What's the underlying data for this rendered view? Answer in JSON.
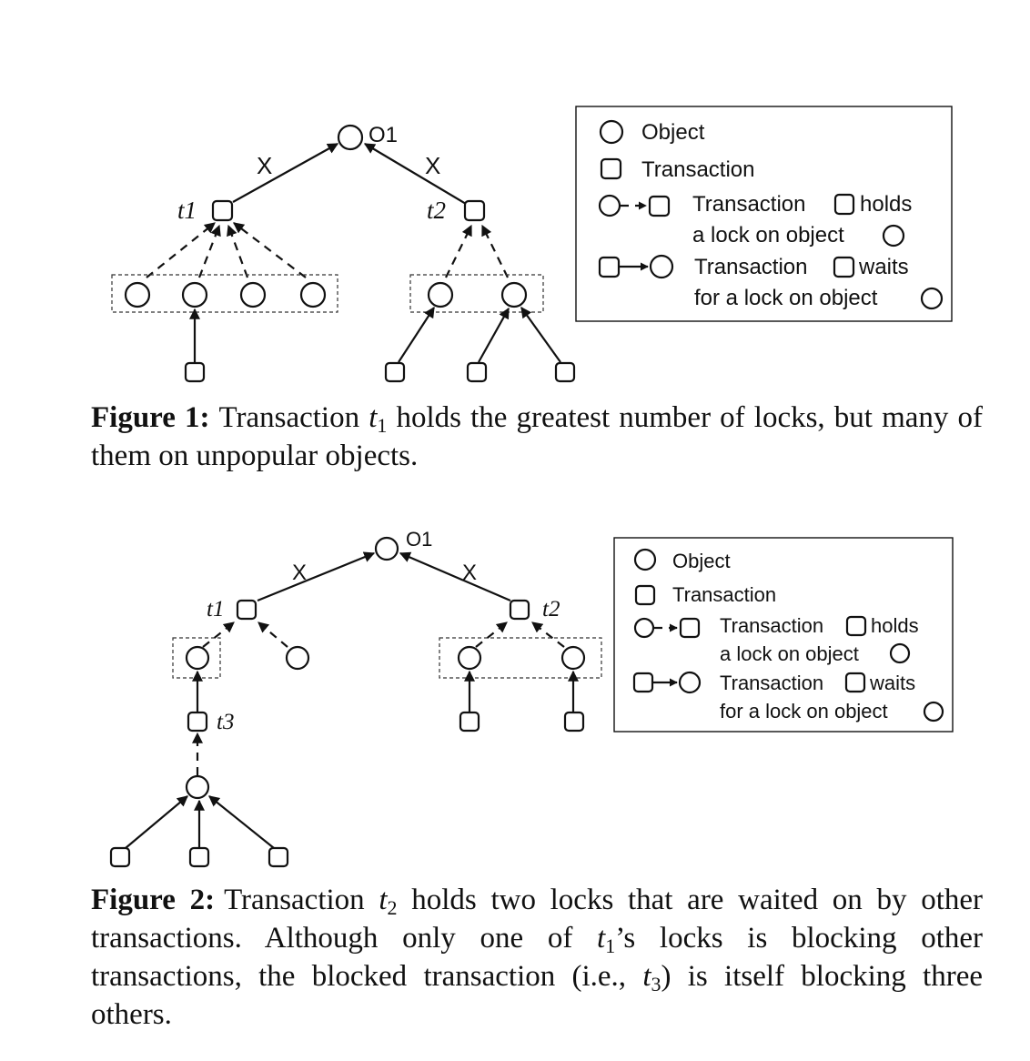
{
  "figure1": {
    "diagram": {
      "root_label": "O1",
      "edge_label_left": "X",
      "edge_label_right": "X",
      "t1_label": "t1",
      "t2_label": "t2"
    },
    "legend": {
      "object": "Object",
      "transaction": "Transaction",
      "holds_line1_a": "Transaction",
      "holds_line1_b": "holds",
      "holds_line2": "a lock on object",
      "waits_line1_a": "Transaction",
      "waits_line1_b": "waits",
      "waits_line2": "for a lock on object"
    },
    "caption": {
      "label": "Figure 1:",
      "text_before": "Transaction ",
      "var": "t",
      "sub": "1",
      "text_after": " holds the greatest number of locks, but many of them on unpopular objects."
    }
  },
  "figure2": {
    "diagram": {
      "root_label": "O1",
      "edge_label_left": "X",
      "edge_label_right": "X",
      "t1_label": "t1",
      "t2_label": "t2",
      "t3_label": "t3"
    },
    "legend": {
      "object": "Object",
      "transaction": "Transaction",
      "holds_line1_a": "Transaction",
      "holds_line1_b": "holds",
      "holds_line2": "a lock on object",
      "waits_line1_a": "Transaction",
      "waits_line1_b": "waits",
      "waits_line2": "for a lock on object"
    },
    "caption": {
      "label": "Figure 2:",
      "part1": "Transaction ",
      "var1": "t",
      "sub1": "2",
      "part2": " holds two locks that are waited on by other transactions. Although only one of ",
      "var2": "t",
      "sub2": "1",
      "part3": "’s locks is blocking other transactions, the blocked transaction (i.e., ",
      "var3": "t",
      "sub3": "3",
      "part4": ") is itself blocking three others."
    }
  }
}
